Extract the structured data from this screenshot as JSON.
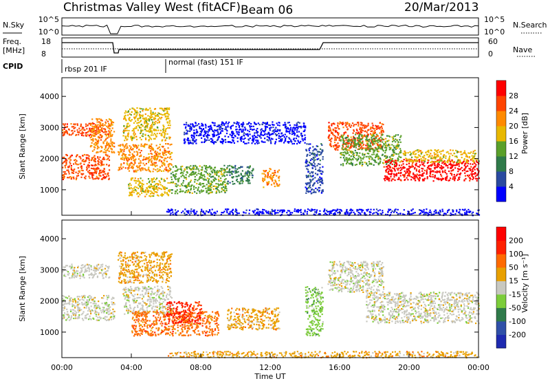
{
  "header": {
    "station": "Christmas Valley West (fitACF)",
    "beam": "Beam 06",
    "date": "20/Mar/2013"
  },
  "strips": {
    "nsky_label": "N.Sky",
    "nsky_ticks": [
      "10^5",
      "10^0"
    ],
    "nsearch_label": "N.Search",
    "nsearch_ticks": [
      "10^5",
      "10^0"
    ],
    "freq_label_line1": "Freq.",
    "freq_label_line2": "[MHz]",
    "freq_ticks": [
      "18",
      "8"
    ],
    "nave_label": "Nave",
    "nave_ticks": [
      "60",
      "0"
    ],
    "cpid_label": "CPID",
    "cpid_segments": [
      "rbsp 201 IF",
      "normal (fast) 151 IF"
    ]
  },
  "chart_data": [
    {
      "type": "heatmap",
      "panel": "power",
      "ylabel": "Slant Range [km]",
      "xlabel": "Time UT",
      "x_ticks": [
        "00:00",
        "04:00",
        "08:00",
        "12:00",
        "16:00",
        "20:00",
        "00:00"
      ],
      "xlim_hours": [
        0,
        24
      ],
      "y_ticks": [
        1000,
        2000,
        3000,
        4000
      ],
      "ylim": [
        180,
        4600
      ],
      "colorbar": {
        "label": "Power [dB]",
        "ticks": [
          "4",
          "8",
          "12",
          "16",
          "20",
          "24",
          "28"
        ],
        "colors": [
          "#0000ff",
          "#2a4aa0",
          "#2f7a4a",
          "#5aa02a",
          "#e8b800",
          "#ff8a00",
          "#ff4400",
          "#ff0000"
        ]
      },
      "regions": [
        {
          "t0": 0.0,
          "t1": 2.7,
          "r0": 1350,
          "r1": 2150,
          "c": 6
        },
        {
          "t0": 0.0,
          "t1": 2.7,
          "r0": 2750,
          "r1": 3150,
          "c": 6
        },
        {
          "t0": 1.6,
          "t1": 3.0,
          "r0": 2200,
          "r1": 3300,
          "c": 5
        },
        {
          "t0": 3.2,
          "t1": 6.3,
          "r0": 1600,
          "r1": 2500,
          "c": 5
        },
        {
          "t0": 3.5,
          "t1": 6.2,
          "r0": 2600,
          "r1": 3650,
          "c": 4
        },
        {
          "t0": 3.8,
          "t1": 6.2,
          "r0": 800,
          "r1": 1400,
          "c": 4
        },
        {
          "t0": 6.2,
          "t1": 9.5,
          "r0": 900,
          "r1": 1800,
          "c": 3
        },
        {
          "t0": 9.5,
          "t1": 11.0,
          "r0": 1200,
          "r1": 1800,
          "c": 2
        },
        {
          "t0": 11.5,
          "t1": 12.5,
          "r0": 1100,
          "r1": 1700,
          "c": 5
        },
        {
          "t0": 7.0,
          "t1": 14.0,
          "r0": 2500,
          "r1": 3200,
          "c": 0
        },
        {
          "t0": 14.0,
          "t1": 15.0,
          "r0": 900,
          "r1": 2500,
          "c": 1
        },
        {
          "t0": 15.3,
          "t1": 18.5,
          "r0": 2300,
          "r1": 3200,
          "c": 6
        },
        {
          "t0": 16.0,
          "t1": 19.5,
          "r0": 1800,
          "r1": 2800,
          "c": 3
        },
        {
          "t0": 18.5,
          "t1": 24.0,
          "r0": 1300,
          "r1": 2000,
          "c": 7
        },
        {
          "t0": 19.5,
          "t1": 24.0,
          "r0": 1900,
          "r1": 2300,
          "c": 4
        },
        {
          "t0": 6.0,
          "t1": 24.0,
          "r0": 200,
          "r1": 400,
          "c": 0
        }
      ]
    },
    {
      "type": "heatmap",
      "panel": "velocity",
      "ylabel": "Slant Range [km]",
      "xlabel": "Time UT",
      "x_ticks": [
        "00:00",
        "04:00",
        "08:00",
        "12:00",
        "16:00",
        "20:00",
        "00:00"
      ],
      "xlim_hours": [
        0,
        24
      ],
      "y_ticks": [
        1000,
        2000,
        3000,
        4000
      ],
      "ylim": [
        180,
        4600
      ],
      "colorbar": {
        "label": "Velocity [m s⁻¹]",
        "ticks": [
          "200",
          "100",
          "50",
          "15",
          "-15",
          "-50",
          "-100",
          "-200"
        ],
        "colors": [
          "#1e2ab0",
          "#3050a8",
          "#2f7a4a",
          "#7ccd3a",
          "#c8c8c0",
          "#e8a000",
          "#ff6a00",
          "#ff2000",
          "#ff0000"
        ]
      },
      "regions": [
        {
          "t0": 0.0,
          "t1": 3.0,
          "r0": 1400,
          "r1": 2200,
          "c": 4
        },
        {
          "t0": 0.0,
          "t1": 2.7,
          "r0": 2750,
          "r1": 3200,
          "c": 4
        },
        {
          "t0": 3.2,
          "t1": 6.3,
          "r0": 2600,
          "r1": 3600,
          "c": 5
        },
        {
          "t0": 3.5,
          "t1": 6.3,
          "r0": 1600,
          "r1": 2500,
          "c": 4
        },
        {
          "t0": 4.0,
          "t1": 9.0,
          "r0": 900,
          "r1": 1700,
          "c": 6
        },
        {
          "t0": 6.0,
          "t1": 8.0,
          "r0": 1300,
          "r1": 2000,
          "c": 7
        },
        {
          "t0": 9.5,
          "t1": 12.5,
          "r0": 1100,
          "r1": 1800,
          "c": 5
        },
        {
          "t0": 14.0,
          "t1": 15.0,
          "r0": 900,
          "r1": 2500,
          "c": 3
        },
        {
          "t0": 15.3,
          "t1": 18.5,
          "r0": 2300,
          "r1": 3300,
          "c": 4
        },
        {
          "t0": 17.5,
          "t1": 24.0,
          "r0": 1300,
          "r1": 2300,
          "c": 4
        },
        {
          "t0": 6.0,
          "t1": 24.0,
          "r0": 200,
          "r1": 400,
          "c": 5
        }
      ]
    }
  ]
}
